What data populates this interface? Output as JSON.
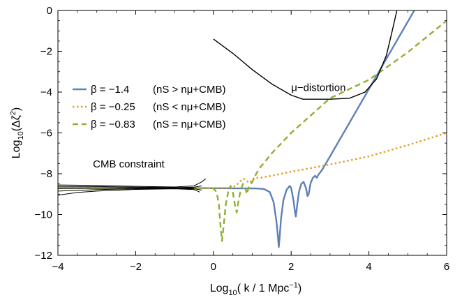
{
  "chart_data": {
    "type": "line",
    "xlabel": "Log10( k / 1 Mpc−1)",
    "ylabel": "Log10(Δζ2)",
    "xlim": [
      -4,
      6
    ],
    "ylim": [
      -12,
      0
    ],
    "xticks": [
      -4,
      -2,
      0,
      2,
      4,
      6
    ],
    "yticks": [
      -12,
      -10,
      -8,
      -6,
      -4,
      -2,
      0
    ],
    "xtick_labels": [
      "−4",
      "−2",
      "0",
      "2",
      "4",
      "6"
    ],
    "ytick_labels": [
      "−12",
      "−10",
      "−8",
      "−6",
      "−4",
      "−2",
      "0"
    ],
    "grid": false,
    "legend_position": "left",
    "annotations": [
      {
        "text": "μ−distortion",
        "x": 2.0,
        "y": -3.95
      },
      {
        "text": "CMB constraint",
        "x": -3.1,
        "y": -7.7
      }
    ],
    "series": [
      {
        "name": "β = −1.4",
        "condition": "(nS > nμ+CMB)",
        "color": "#5e81b5",
        "dash": "solid",
        "points": [
          [
            -4,
            -8.7
          ],
          [
            -3,
            -8.7
          ],
          [
            -2,
            -8.7
          ],
          [
            -1,
            -8.7
          ],
          [
            0,
            -8.71
          ],
          [
            1,
            -8.72
          ],
          [
            1.1,
            -8.72
          ],
          [
            1.3,
            -8.75
          ],
          [
            1.45,
            -8.9
          ],
          [
            1.55,
            -9.4
          ],
          [
            1.62,
            -10.3
          ],
          [
            1.66,
            -11.1
          ],
          [
            1.68,
            -11.6
          ],
          [
            1.7,
            -11.2
          ],
          [
            1.74,
            -10.2
          ],
          [
            1.8,
            -9.3
          ],
          [
            1.88,
            -8.8
          ],
          [
            1.96,
            -8.6
          ],
          [
            2.0,
            -8.7
          ],
          [
            2.06,
            -9.3
          ],
          [
            2.1,
            -9.9
          ],
          [
            2.12,
            -10.1
          ],
          [
            2.15,
            -9.6
          ],
          [
            2.2,
            -8.9
          ],
          [
            2.26,
            -8.5
          ],
          [
            2.32,
            -8.4
          ],
          [
            2.38,
            -8.7
          ],
          [
            2.42,
            -9.1
          ],
          [
            2.45,
            -9.0
          ],
          [
            2.5,
            -8.45
          ],
          [
            2.56,
            -8.2
          ],
          [
            2.62,
            -8.1
          ],
          [
            2.66,
            -8.2
          ],
          [
            2.7,
            -8.05
          ],
          [
            2.8,
            -7.8
          ],
          [
            3.0,
            -7.15
          ],
          [
            3.5,
            -5.5
          ],
          [
            4.0,
            -3.85
          ],
          [
            4.5,
            -2.2
          ],
          [
            5.0,
            -0.55
          ],
          [
            5.5,
            1.1
          ]
        ]
      },
      {
        "name": "β = −0.25",
        "condition": "(nS < nμ+CMB)",
        "color": "#e19c24",
        "dash": "dotted",
        "points": [
          [
            -4,
            -8.7
          ],
          [
            -2,
            -8.7
          ],
          [
            -1,
            -8.7
          ],
          [
            0,
            -8.7
          ],
          [
            0.4,
            -8.7
          ],
          [
            0.5,
            -8.65
          ],
          [
            0.6,
            -8.55
          ],
          [
            0.7,
            -8.35
          ],
          [
            0.78,
            -8.25
          ],
          [
            0.86,
            -8.35
          ],
          [
            0.92,
            -8.45
          ],
          [
            0.98,
            -8.35
          ],
          [
            1.05,
            -8.2
          ],
          [
            1.2,
            -8.2
          ],
          [
            1.5,
            -8.1
          ],
          [
            2,
            -7.9
          ],
          [
            3,
            -7.55
          ],
          [
            4,
            -7.15
          ],
          [
            5,
            -6.6
          ],
          [
            6,
            -6.0
          ]
        ]
      },
      {
        "name": "β = −0.83",
        "condition": "(nS = nμ+CMB)",
        "color": "#8fb032",
        "dash": "dashed",
        "points": [
          [
            -4,
            -8.7
          ],
          [
            -2,
            -8.7
          ],
          [
            -1,
            -8.7
          ],
          [
            -0.2,
            -8.7
          ],
          [
            0,
            -8.72
          ],
          [
            0.08,
            -8.9
          ],
          [
            0.14,
            -9.5
          ],
          [
            0.18,
            -10.5
          ],
          [
            0.22,
            -11.3
          ],
          [
            0.26,
            -10.6
          ],
          [
            0.32,
            -9.5
          ],
          [
            0.38,
            -8.9
          ],
          [
            0.44,
            -8.6
          ],
          [
            0.5,
            -8.9
          ],
          [
            0.56,
            -9.6
          ],
          [
            0.6,
            -9.9
          ],
          [
            0.64,
            -9.4
          ],
          [
            0.7,
            -8.8
          ],
          [
            0.76,
            -8.5
          ],
          [
            0.82,
            -8.7
          ],
          [
            0.86,
            -9.0
          ],
          [
            0.9,
            -8.7
          ],
          [
            1.0,
            -8.4
          ],
          [
            1.1,
            -8.0
          ],
          [
            1.2,
            -7.7
          ],
          [
            1.5,
            -7.0
          ],
          [
            2,
            -6.0
          ],
          [
            3,
            -4.3
          ],
          [
            4,
            -3.4
          ],
          [
            5,
            -2.05
          ],
          [
            6,
            -0.5
          ]
        ]
      },
      {
        "name": "μ−distortion",
        "color": "#000000",
        "dash": "solid",
        "width": 1.4,
        "points": [
          [
            0,
            -1.4
          ],
          [
            0.5,
            -2.1
          ],
          [
            1,
            -2.9
          ],
          [
            1.5,
            -3.6
          ],
          [
            2,
            -4.15
          ],
          [
            2.3,
            -4.35
          ],
          [
            3,
            -4.35
          ],
          [
            3.5,
            -4.3
          ],
          [
            3.9,
            -4.0
          ],
          [
            4.2,
            -3.35
          ],
          [
            4.45,
            -2.2
          ],
          [
            4.6,
            -1.0
          ],
          [
            4.72,
            0
          ]
        ]
      },
      {
        "name": "CMB constraint",
        "color": "#000000",
        "dash": "solid",
        "width": 1.0,
        "bundle": [
          [
            [
              -4,
              -8.55
            ],
            [
              -3,
              -8.57
            ],
            [
              -2,
              -8.62
            ],
            [
              -1,
              -8.65
            ],
            [
              -0.5,
              -8.6
            ],
            [
              -0.3,
              -8.4
            ],
            [
              -0.2,
              -8.25
            ]
          ],
          [
            [
              -4,
              -8.62
            ],
            [
              -3,
              -8.63
            ],
            [
              -2,
              -8.66
            ],
            [
              -1,
              -8.68
            ],
            [
              -0.5,
              -8.66
            ],
            [
              -0.3,
              -8.6
            ]
          ],
          [
            [
              -4,
              -8.72
            ],
            [
              -3,
              -8.7
            ],
            [
              -2,
              -8.7
            ],
            [
              -1,
              -8.7
            ],
            [
              -0.5,
              -8.7
            ]
          ],
          [
            [
              -4,
              -8.85
            ],
            [
              -3,
              -8.78
            ],
            [
              -2,
              -8.74
            ],
            [
              -1,
              -8.72
            ],
            [
              -0.5,
              -8.74
            ],
            [
              -0.3,
              -8.8
            ]
          ],
          [
            [
              -4,
              -9.05
            ],
            [
              -3.5,
              -8.92
            ],
            [
              -3,
              -8.85
            ],
            [
              -2,
              -8.77
            ],
            [
              -1,
              -8.74
            ],
            [
              -0.5,
              -8.78
            ],
            [
              -0.35,
              -8.9
            ]
          ]
        ]
      }
    ]
  }
}
